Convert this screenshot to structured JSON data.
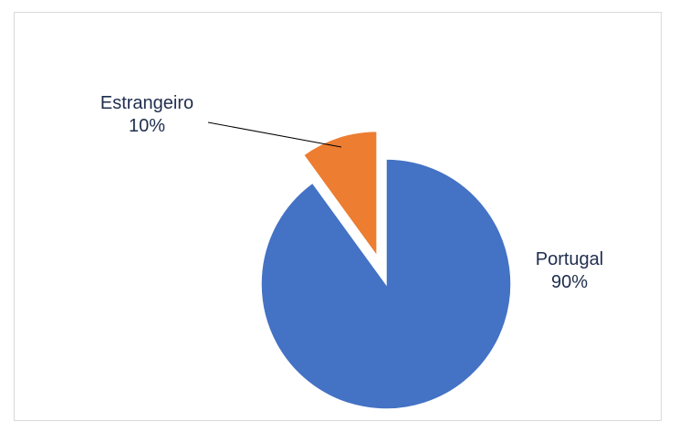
{
  "chart_data": {
    "type": "pie",
    "title": "",
    "exploded": true,
    "start_angle_deg": 0,
    "direction": "clockwise",
    "legend": "none",
    "categories": [
      "Portugal",
      "Estrangeiro"
    ],
    "values": [
      90,
      10
    ],
    "data_labels": [
      "90%",
      "10%"
    ],
    "colors": [
      "#4472c4",
      "#ed7d31"
    ]
  }
}
